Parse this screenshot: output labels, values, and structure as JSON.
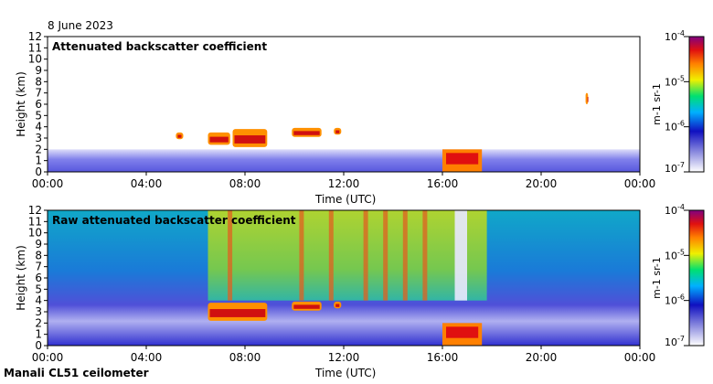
{
  "header": {
    "date": "8 June 2023"
  },
  "footer": {
    "station": "Manali CL51 ceilometer"
  },
  "colorbar": {
    "ticks": [
      "10-4",
      "10-5",
      "10-6",
      "10-7"
    ],
    "unit_label": "m-1 sr-1",
    "gradient": [
      "#ffffff",
      "#1010c0",
      "#00b0ff",
      "#00e070",
      "#f0f000",
      "#ff8000",
      "#e01010",
      "#800080"
    ]
  },
  "chart_data": [
    {
      "type": "heatmap",
      "title": "Attenuated backscatter coefficient",
      "xlabel": "Time (UTC)",
      "ylabel": "Height (km)",
      "x_ticks": [
        "00:00",
        "04:00",
        "08:00",
        "12:00",
        "16:00",
        "20:00",
        "00:00"
      ],
      "y_ticks": [
        "0",
        "1",
        "2",
        "3",
        "4",
        "5",
        "6",
        "7",
        "8",
        "9",
        "10",
        "11",
        "12"
      ],
      "xlim_hours": [
        0,
        24
      ],
      "ylim_km": [
        0,
        12
      ],
      "color_scale": "log, 1e-7 to 1e-4 m-1 sr-1",
      "features": [
        {
          "name": "boundary-layer",
          "start_h": 0,
          "end_h": 24,
          "top_km": 2.0
        },
        {
          "name": "cloud",
          "start_h": 5.2,
          "end_h": 5.5,
          "bottom_km": 2.9,
          "top_km": 3.5
        },
        {
          "name": "cloud",
          "start_h": 6.5,
          "end_h": 7.4,
          "bottom_km": 2.4,
          "top_km": 3.5
        },
        {
          "name": "cloud",
          "start_h": 7.5,
          "end_h": 8.9,
          "bottom_km": 2.2,
          "top_km": 3.8
        },
        {
          "name": "cloud",
          "start_h": 9.9,
          "end_h": 11.1,
          "bottom_km": 3.1,
          "top_km": 3.9
        },
        {
          "name": "cloud",
          "start_h": 11.6,
          "end_h": 11.9,
          "bottom_km": 3.3,
          "top_km": 3.9
        },
        {
          "name": "rain",
          "start_h": 16.0,
          "end_h": 17.6,
          "bottom_km": 0,
          "top_km": 2.0
        },
        {
          "name": "cloud",
          "start_h": 21.8,
          "end_h": 21.9,
          "bottom_km": 6.0,
          "top_km": 7.0
        }
      ]
    },
    {
      "type": "heatmap",
      "title": "Raw attenuated backscatter coefficient",
      "xlabel": "Time (UTC)",
      "ylabel": "Height (km)",
      "x_ticks": [
        "00:00",
        "04:00",
        "08:00",
        "12:00",
        "16:00",
        "20:00",
        "00:00"
      ],
      "y_ticks": [
        "0",
        "1",
        "2",
        "3",
        "4",
        "5",
        "6",
        "7",
        "8",
        "9",
        "10",
        "11",
        "12"
      ],
      "xlim_hours": [
        0,
        24
      ],
      "ylim_km": [
        0,
        12
      ],
      "color_scale": "log, 1e-7 to 1e-4 m-1 sr-1",
      "features": [
        {
          "name": "daytime-noise",
          "start_h": 6.5,
          "end_h": 17.8,
          "bottom_km": 4,
          "top_km": 12
        },
        {
          "name": "cloud",
          "start_h": 6.5,
          "end_h": 8.9,
          "bottom_km": 2.2,
          "top_km": 3.8
        },
        {
          "name": "cloud",
          "start_h": 9.9,
          "end_h": 11.1,
          "bottom_km": 3.1,
          "top_km": 3.9
        },
        {
          "name": "cloud",
          "start_h": 11.6,
          "end_h": 11.9,
          "bottom_km": 3.3,
          "top_km": 3.9
        },
        {
          "name": "rain",
          "start_h": 16.0,
          "end_h": 17.6,
          "bottom_km": 0,
          "top_km": 2.0
        }
      ]
    }
  ]
}
